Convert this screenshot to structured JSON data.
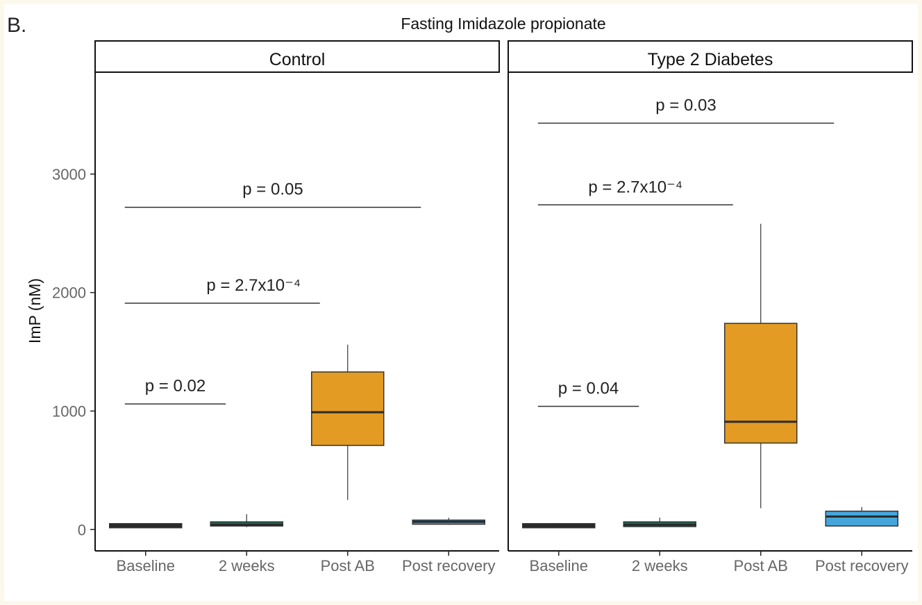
{
  "panel_letter": "B.",
  "chart_data": {
    "type": "box",
    "title": "Fasting Imidazole propionate",
    "ylabel": "ImP (nM)",
    "xlabel": "",
    "ylim": [
      -180,
      3860
    ],
    "yticks": [
      0,
      1000,
      2000,
      3000
    ],
    "categories": [
      "Baseline",
      "2 weeks",
      "Post AB",
      "Post recovery"
    ],
    "colors": {
      "Baseline": "#2b2b2b",
      "2 weeks": "#1b6b55",
      "Post AB": "#e39b23",
      "Post recovery": "#45a6dc"
    },
    "panels": [
      {
        "name": "Control",
        "boxes": [
          {
            "category": "Baseline",
            "min": 20,
            "q1": 20,
            "median": 30,
            "q3": 45,
            "max": 55
          },
          {
            "category": "2 weeks",
            "min": 20,
            "q1": 30,
            "median": 40,
            "q3": 65,
            "max": 130
          },
          {
            "category": "Post AB",
            "min": 250,
            "q1": 710,
            "median": 990,
            "q3": 1330,
            "max": 1560
          },
          {
            "category": "Post recovery",
            "min": 40,
            "q1": 45,
            "median": 65,
            "q3": 80,
            "max": 100
          }
        ],
        "annotations": [
          {
            "label": "p = 0.02",
            "y": 1060,
            "from": 0.0,
            "to": 1.0
          },
          {
            "label": "p = 2.7x10⁻⁴",
            "y": 1910,
            "from": 0.0,
            "to": 2.0
          },
          {
            "label": "p = 0.05",
            "y": 2720,
            "from": 0.0,
            "to": 3.0
          }
        ]
      },
      {
        "name": "Type 2 Diabetes",
        "boxes": [
          {
            "category": "Baseline",
            "min": 20,
            "q1": 20,
            "median": 30,
            "q3": 45,
            "max": 55
          },
          {
            "category": "2 weeks",
            "min": 20,
            "q1": 25,
            "median": 40,
            "q3": 65,
            "max": 100
          },
          {
            "category": "Post AB",
            "min": 180,
            "q1": 730,
            "median": 910,
            "q3": 1740,
            "max": 2580
          },
          {
            "category": "Post recovery",
            "min": 30,
            "q1": 30,
            "median": 110,
            "q3": 155,
            "max": 190
          }
        ],
        "annotations": [
          {
            "label": "p = 0.04",
            "y": 1040,
            "from": 0.0,
            "to": 1.0
          },
          {
            "label": "p = 2.7x10⁻⁴",
            "y": 2740,
            "from": 0.0,
            "to": 2.0
          },
          {
            "label": "p = 0.03",
            "y": 3430,
            "from": 0.0,
            "to": 3.0
          }
        ]
      }
    ]
  }
}
